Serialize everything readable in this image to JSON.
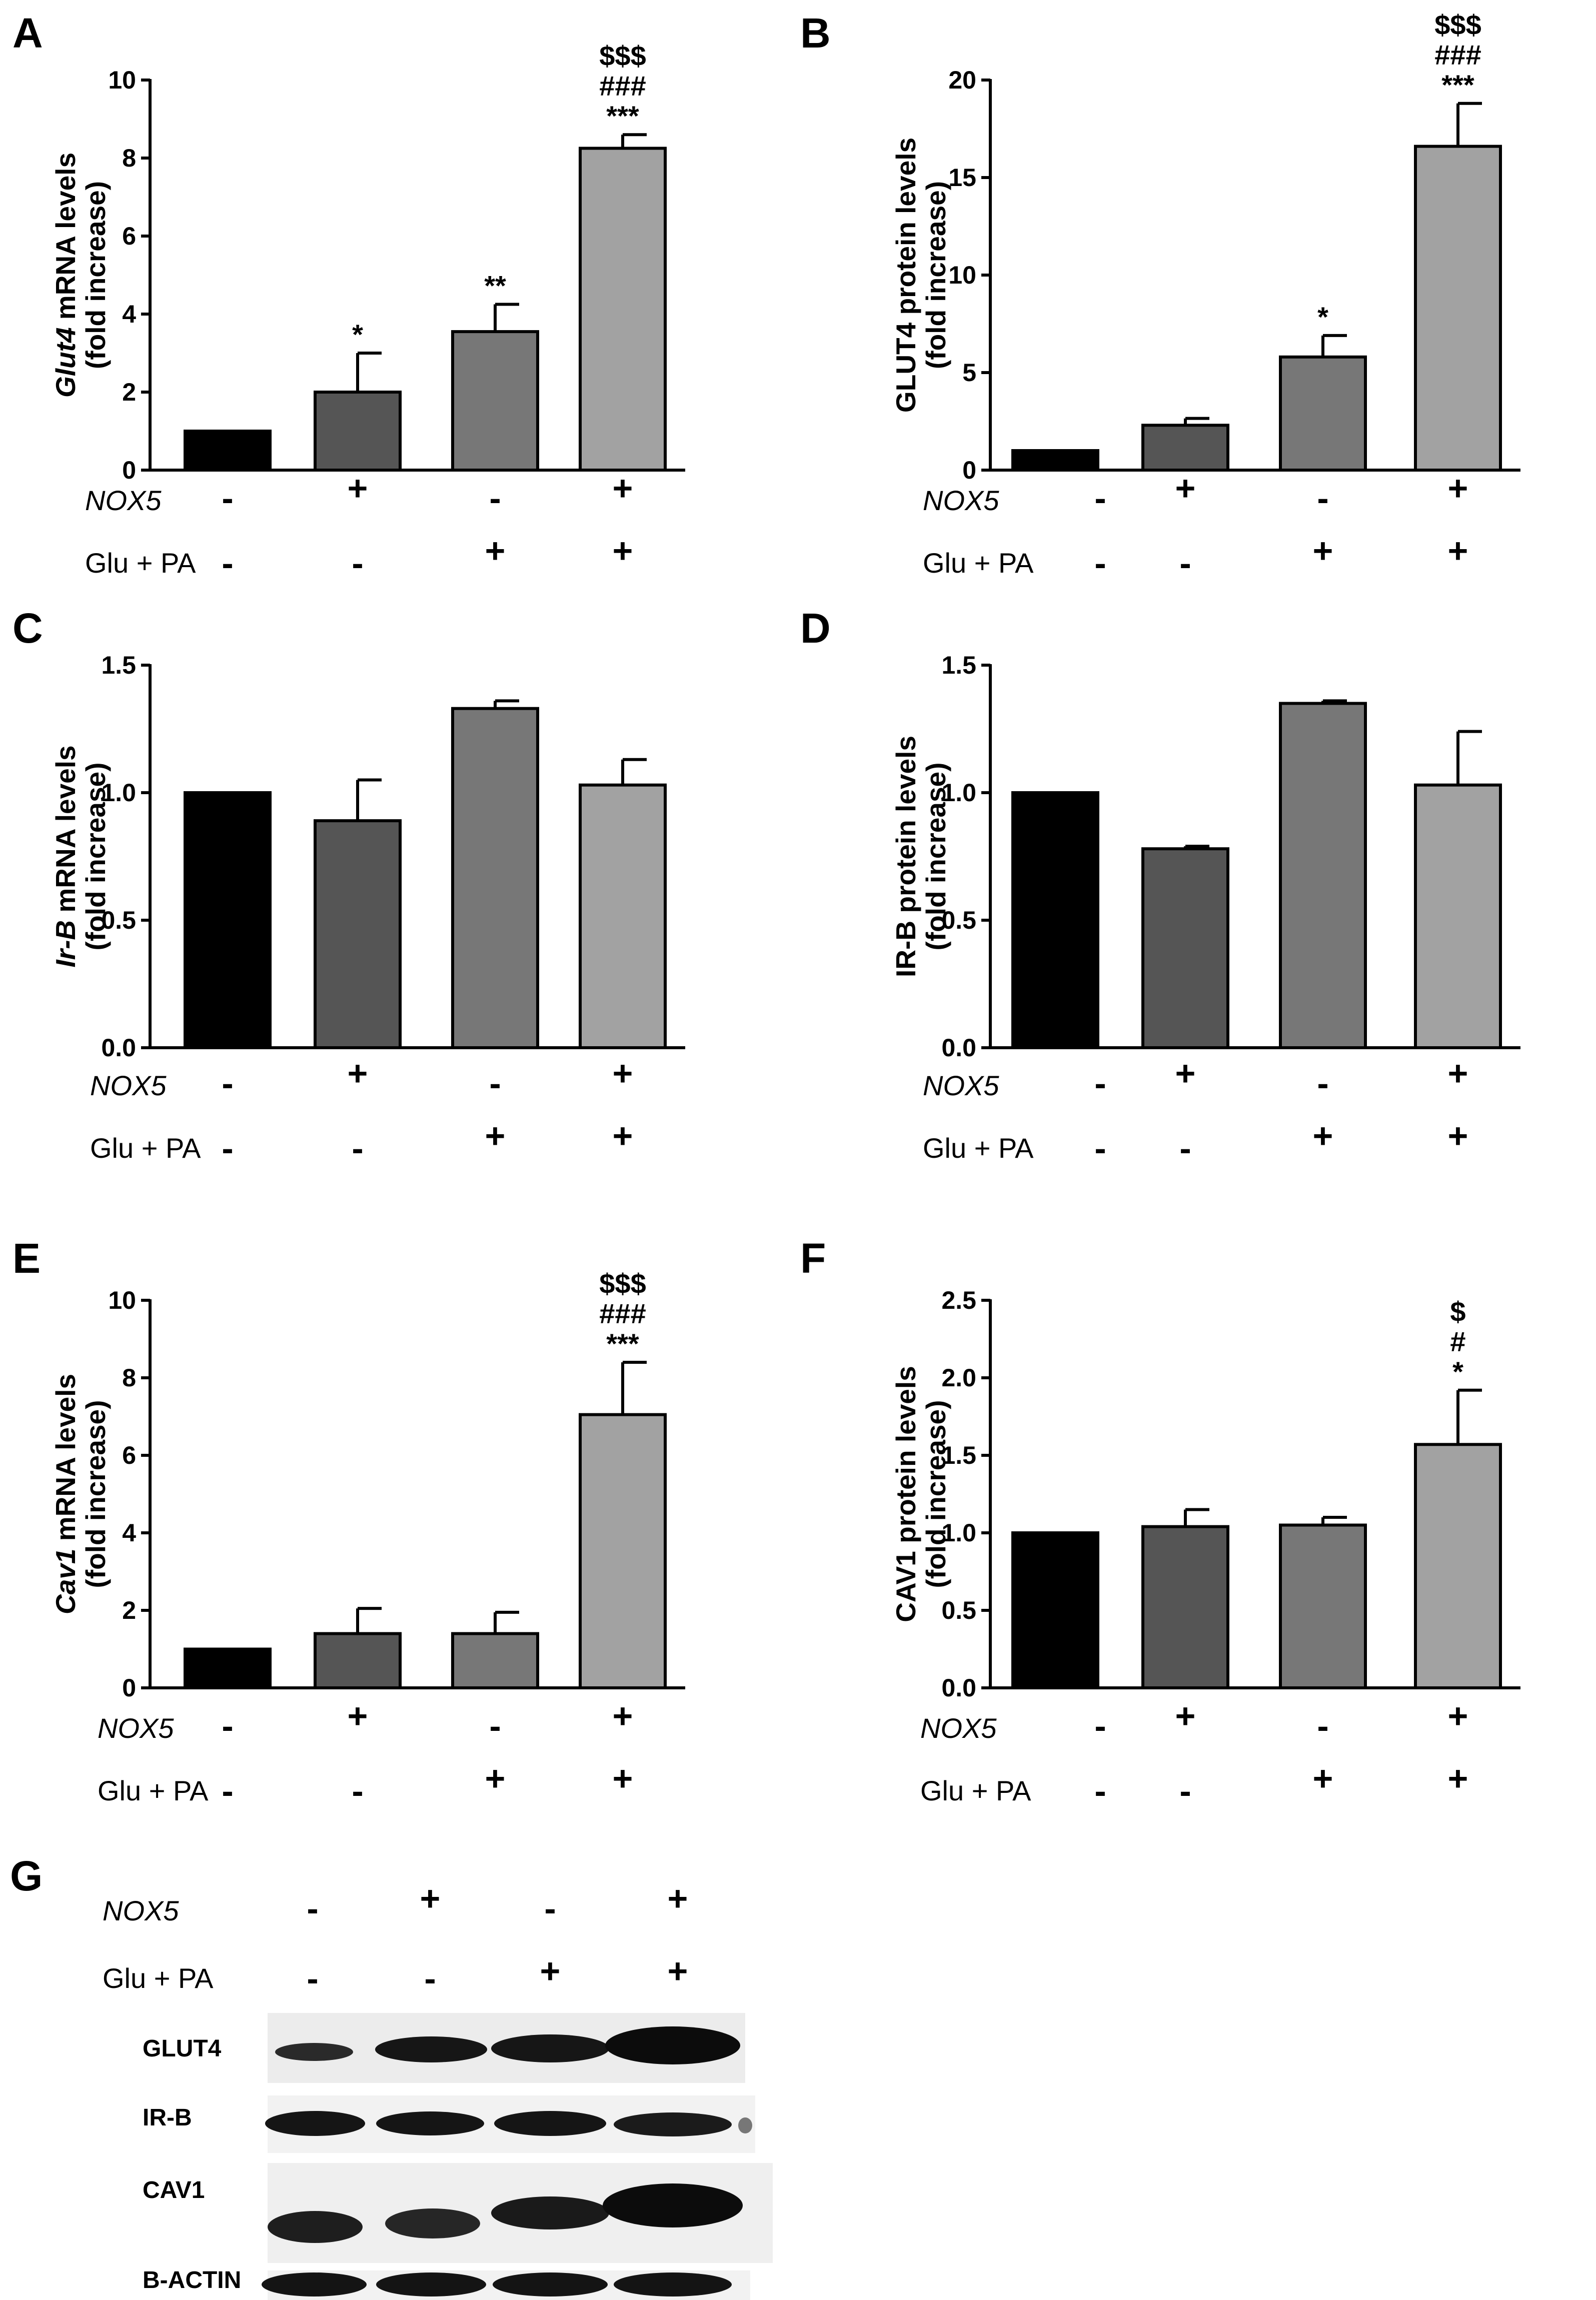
{
  "panel_G": {
    "letter": "G",
    "nox5_label": "NOX5",
    "glupa_label": "Glu + PA",
    "nox5": [
      "-",
      "+",
      "-",
      "+"
    ],
    "glupa": [
      "-",
      "-",
      "+",
      "+"
    ],
    "bands": [
      "GLUT4",
      "IR-B",
      "CAV1",
      "B-ACTIN"
    ]
  },
  "chart_data": [
    {
      "panel": "A",
      "type": "bar",
      "ylabel_italic": "Glut4",
      "ylabel_rest": " mRNA levels",
      "ylabel_line2": "(fold increase)",
      "ylim": [
        0,
        10
      ],
      "yticks": [
        "0",
        "2",
        "4",
        "6",
        "8",
        "10"
      ],
      "values": [
        1.0,
        2.0,
        3.55,
        8.25
      ],
      "errors": [
        0,
        1.0,
        0.7,
        0.35
      ],
      "sig": [
        [],
        [
          "*"
        ],
        [
          "**"
        ],
        [
          "$$$",
          "###",
          "***"
        ]
      ],
      "colors": [
        "#000000",
        "#555555",
        "#777777",
        "#a2a2a2"
      ],
      "nox5_label": "NOX5",
      "glupa_label": "Glu + PA",
      "nox5": [
        "-",
        "+",
        "-",
        "+"
      ],
      "glupa": [
        "-",
        "-",
        "+",
        "+"
      ]
    },
    {
      "panel": "B",
      "type": "bar",
      "ylabel_italic": "",
      "ylabel_rest": "GLUT4 protein levels",
      "ylabel_line2": "(fold increase)",
      "ylim": [
        0,
        20
      ],
      "yticks": [
        "0",
        "5",
        "10",
        "15",
        "20"
      ],
      "values": [
        1.0,
        2.3,
        5.8,
        16.6
      ],
      "errors": [
        0,
        0.35,
        1.1,
        2.2
      ],
      "sig": [
        [],
        [],
        [
          "*"
        ],
        [
          "$$$",
          "###",
          "***"
        ]
      ],
      "colors": [
        "#000000",
        "#555555",
        "#777777",
        "#a2a2a2"
      ],
      "nox5_label": "NOX5",
      "glupa_label": "Glu + PA",
      "nox5": [
        "-",
        "+",
        "-",
        "+"
      ],
      "glupa": [
        "-",
        "-",
        "+",
        "+"
      ]
    },
    {
      "panel": "C",
      "type": "bar",
      "ylabel_italic": "Ir-B",
      "ylabel_rest": " mRNA levels",
      "ylabel_line2": "(fold increase)",
      "ylim": [
        0,
        1.5
      ],
      "yticks": [
        "0.0",
        "0.5",
        "1.0",
        "1.5"
      ],
      "values": [
        1.0,
        0.89,
        1.33,
        1.03
      ],
      "errors": [
        0,
        0.16,
        0.03,
        0.1
      ],
      "sig": [
        [],
        [],
        [],
        []
      ],
      "colors": [
        "#000000",
        "#555555",
        "#777777",
        "#a2a2a2"
      ],
      "nox5_label": "NOX5",
      "glupa_label": "Glu + PA",
      "nox5": [
        "-",
        "+",
        "-",
        "+"
      ],
      "glupa": [
        "-",
        "-",
        "+",
        "+"
      ]
    },
    {
      "panel": "D",
      "type": "bar",
      "ylabel_italic": "",
      "ylabel_rest": "IR-B protein levels",
      "ylabel_line2": "(fold increase)",
      "ylim": [
        0,
        1.5
      ],
      "yticks": [
        "0.0",
        "0.5",
        "1.0",
        "1.5"
      ],
      "values": [
        1.0,
        0.78,
        1.35,
        1.03
      ],
      "errors": [
        0,
        0.01,
        0.01,
        0.21
      ],
      "sig": [
        [],
        [],
        [],
        []
      ],
      "colors": [
        "#000000",
        "#555555",
        "#777777",
        "#a2a2a2"
      ],
      "nox5_label": "NOX5",
      "glupa_label": "Glu + PA",
      "nox5": [
        "-",
        "+",
        "-",
        "+"
      ],
      "glupa": [
        "-",
        "-",
        "+",
        "+"
      ]
    },
    {
      "panel": "E",
      "type": "bar",
      "ylabel_italic": "Cav1",
      "ylabel_rest": " mRNA levels",
      "ylabel_line2": "(fold increase)",
      "ylim": [
        0,
        10
      ],
      "yticks": [
        "0",
        "2",
        "4",
        "6",
        "8",
        "10"
      ],
      "values": [
        1.0,
        1.4,
        1.4,
        7.05
      ],
      "errors": [
        0,
        0.65,
        0.55,
        1.35
      ],
      "sig": [
        [],
        [],
        [],
        [
          "$$$",
          "###",
          "***"
        ]
      ],
      "colors": [
        "#000000",
        "#555555",
        "#777777",
        "#a2a2a2"
      ],
      "nox5_label": "NOX5",
      "glupa_label": "Glu + PA",
      "nox5": [
        "-",
        "+",
        "-",
        "+"
      ],
      "glupa": [
        "-",
        "-",
        "+",
        "+"
      ]
    },
    {
      "panel": "F",
      "type": "bar",
      "ylabel_italic": "",
      "ylabel_rest": "CAV1 protein levels",
      "ylabel_line2": "(fold increase)",
      "ylim": [
        0,
        2.5
      ],
      "yticks": [
        "0.0",
        "0.5",
        "1.0",
        "1.5",
        "2.0",
        "2.5"
      ],
      "values": [
        1.0,
        1.04,
        1.05,
        1.57
      ],
      "errors": [
        0,
        0.11,
        0.05,
        0.35
      ],
      "sig": [
        [],
        [],
        [],
        [
          "$",
          "#",
          "*"
        ]
      ],
      "colors": [
        "#000000",
        "#555555",
        "#777777",
        "#a2a2a2"
      ],
      "nox5_label": "NOX5",
      "glupa_label": "Glu + PA",
      "nox5": [
        "-",
        "+",
        "-",
        "+"
      ],
      "glupa": [
        "-",
        "-",
        "+",
        "+"
      ]
    }
  ]
}
